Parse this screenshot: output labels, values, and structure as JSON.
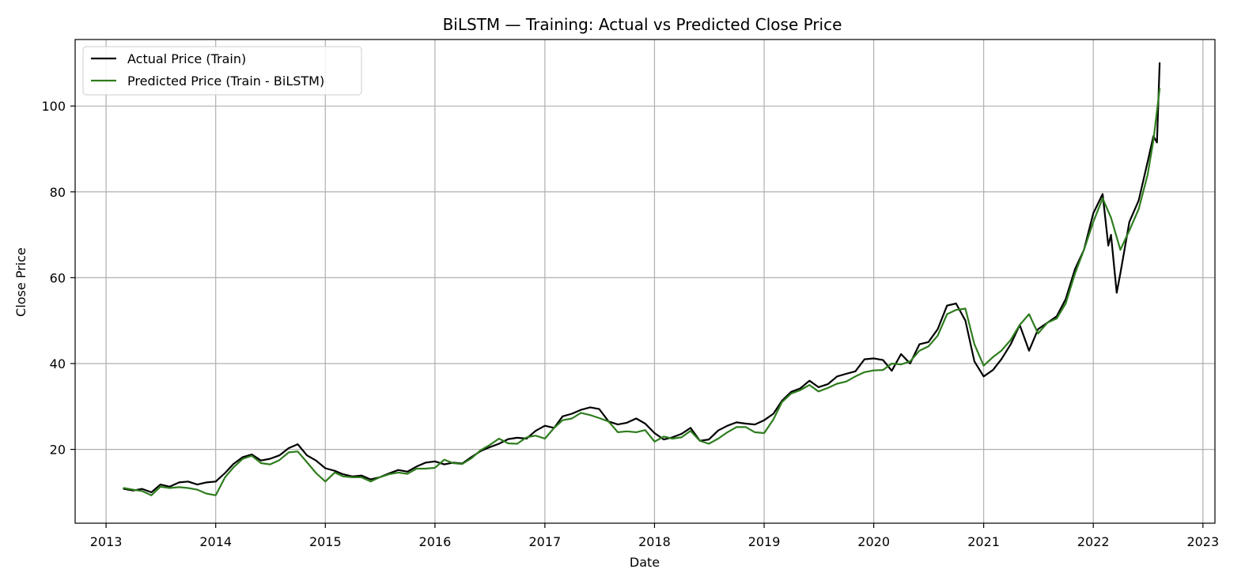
{
  "chart_data": {
    "type": "line",
    "title": "BiLSTM — Training: Actual vs Predicted Close Price",
    "xlabel": "Date",
    "ylabel": "Close Price",
    "x_type": "date",
    "xlim": [
      "2012-09-20",
      "2023-02-10"
    ],
    "ylim": [
      2.8,
      115.5
    ],
    "x_ticks": [
      "2013",
      "2014",
      "2015",
      "2016",
      "2017",
      "2018",
      "2019",
      "2020",
      "2021",
      "2022",
      "2023"
    ],
    "x_tick_dates": [
      "2013-01-01",
      "2014-01-01",
      "2015-01-01",
      "2016-01-01",
      "2017-01-01",
      "2018-01-01",
      "2019-01-01",
      "2020-01-01",
      "2021-01-01",
      "2022-01-01",
      "2023-01-01"
    ],
    "y_ticks": [
      20,
      40,
      60,
      80,
      100
    ],
    "grid": true,
    "legend_position": "upper-left",
    "series": [
      {
        "name": "Actual Price (Train)",
        "color": "#000000",
        "points": [
          [
            "2013-03-01",
            10.8
          ],
          [
            "2013-04-01",
            10.4
          ],
          [
            "2013-05-01",
            10.8
          ],
          [
            "2013-06-01",
            10.0
          ],
          [
            "2013-07-01",
            11.8
          ],
          [
            "2013-08-01",
            11.3
          ],
          [
            "2013-09-01",
            12.3
          ],
          [
            "2013-10-01",
            12.5
          ],
          [
            "2013-11-01",
            11.8
          ],
          [
            "2013-12-01",
            12.3
          ],
          [
            "2014-01-01",
            12.5
          ],
          [
            "2014-02-01",
            14.5
          ],
          [
            "2014-03-01",
            16.6
          ],
          [
            "2014-04-01",
            18.2
          ],
          [
            "2014-05-01",
            18.8
          ],
          [
            "2014-06-01",
            17.4
          ],
          [
            "2014-07-01",
            17.8
          ],
          [
            "2014-08-01",
            18.6
          ],
          [
            "2014-09-01",
            20.3
          ],
          [
            "2014-10-01",
            21.2
          ],
          [
            "2014-11-01",
            18.6
          ],
          [
            "2014-12-01",
            17.4
          ],
          [
            "2015-01-01",
            15.6
          ],
          [
            "2015-02-01",
            15.0
          ],
          [
            "2015-03-01",
            14.2
          ],
          [
            "2015-04-01",
            13.7
          ],
          [
            "2015-05-01",
            13.9
          ],
          [
            "2015-06-01",
            13.0
          ],
          [
            "2015-07-01",
            13.5
          ],
          [
            "2015-08-01",
            14.4
          ],
          [
            "2015-09-01",
            15.2
          ],
          [
            "2015-10-01",
            14.8
          ],
          [
            "2015-11-01",
            16.0
          ],
          [
            "2015-12-01",
            16.9
          ],
          [
            "2016-01-01",
            17.2
          ],
          [
            "2016-02-01",
            16.5
          ],
          [
            "2016-03-01",
            16.9
          ],
          [
            "2016-04-01",
            16.7
          ],
          [
            "2016-05-01",
            18.2
          ],
          [
            "2016-06-01",
            19.6
          ],
          [
            "2016-07-01",
            20.5
          ],
          [
            "2016-08-01",
            21.3
          ],
          [
            "2016-09-01",
            22.4
          ],
          [
            "2016-10-01",
            22.7
          ],
          [
            "2016-11-01",
            22.5
          ],
          [
            "2016-12-01",
            24.3
          ],
          [
            "2017-01-01",
            25.5
          ],
          [
            "2017-02-01",
            25.0
          ],
          [
            "2017-03-01",
            27.7
          ],
          [
            "2017-04-01",
            28.3
          ],
          [
            "2017-05-01",
            29.2
          ],
          [
            "2017-06-01",
            29.8
          ],
          [
            "2017-07-01",
            29.4
          ],
          [
            "2017-08-01",
            26.5
          ],
          [
            "2017-09-01",
            25.8
          ],
          [
            "2017-10-01",
            26.2
          ],
          [
            "2017-11-01",
            27.2
          ],
          [
            "2017-12-01",
            26.0
          ],
          [
            "2018-01-01",
            23.8
          ],
          [
            "2018-02-01",
            22.3
          ],
          [
            "2018-03-01",
            22.8
          ],
          [
            "2018-04-01",
            23.6
          ],
          [
            "2018-05-01",
            25.0
          ],
          [
            "2018-06-01",
            22.0
          ],
          [
            "2018-07-01",
            22.3
          ],
          [
            "2018-08-01",
            24.4
          ],
          [
            "2018-09-01",
            25.5
          ],
          [
            "2018-10-01",
            26.3
          ],
          [
            "2018-11-01",
            26.0
          ],
          [
            "2018-12-01",
            25.8
          ],
          [
            "2019-01-01",
            26.8
          ],
          [
            "2019-02-01",
            28.3
          ],
          [
            "2019-03-01",
            31.3
          ],
          [
            "2019-04-01",
            33.4
          ],
          [
            "2019-05-01",
            34.2
          ],
          [
            "2019-06-01",
            36.0
          ],
          [
            "2019-07-01",
            34.5
          ],
          [
            "2019-08-01",
            35.2
          ],
          [
            "2019-09-01",
            37.0
          ],
          [
            "2019-10-01",
            37.6
          ],
          [
            "2019-11-01",
            38.2
          ],
          [
            "2019-12-01",
            41.0
          ],
          [
            "2020-01-01",
            41.2
          ],
          [
            "2020-02-01",
            40.8
          ],
          [
            "2020-03-01",
            38.3
          ],
          [
            "2020-04-01",
            42.2
          ],
          [
            "2020-05-01",
            40.0
          ],
          [
            "2020-06-01",
            44.5
          ],
          [
            "2020-07-01",
            45.0
          ],
          [
            "2020-08-01",
            48.0
          ],
          [
            "2020-09-01",
            53.5
          ],
          [
            "2020-10-01",
            54.0
          ],
          [
            "2020-11-01",
            50.0
          ],
          [
            "2020-12-01",
            40.5
          ],
          [
            "2021-01-01",
            37.0
          ],
          [
            "2021-02-01",
            38.5
          ],
          [
            "2021-03-01",
            41.0
          ],
          [
            "2021-04-01",
            44.5
          ],
          [
            "2021-05-01",
            49.0
          ],
          [
            "2021-06-01",
            43.0
          ],
          [
            "2021-07-01",
            48.0
          ],
          [
            "2021-08-01",
            49.5
          ],
          [
            "2021-09-01",
            51.0
          ],
          [
            "2021-10-01",
            55.0
          ],
          [
            "2021-11-01",
            62.0
          ],
          [
            "2021-12-01",
            66.5
          ],
          [
            "2022-01-01",
            75.0
          ],
          [
            "2022-02-01",
            79.5
          ],
          [
            "2022-02-20",
            67.5
          ],
          [
            "2022-03-01",
            70.0
          ],
          [
            "2022-03-20",
            56.5
          ],
          [
            "2022-04-01",
            61.0
          ],
          [
            "2022-05-01",
            73.0
          ],
          [
            "2022-06-01",
            78.0
          ],
          [
            "2022-07-01",
            87.0
          ],
          [
            "2022-07-20",
            93.0
          ],
          [
            "2022-08-01",
            91.5
          ],
          [
            "2022-08-10",
            110.0
          ]
        ]
      },
      {
        "name": "Predicted Price (Train - BiLSTM)",
        "color": "#2e7d1e",
        "points": [
          [
            "2013-03-01",
            11.0
          ],
          [
            "2013-04-01",
            10.6
          ],
          [
            "2013-05-01",
            10.3
          ],
          [
            "2013-06-01",
            9.3
          ],
          [
            "2013-07-01",
            11.3
          ],
          [
            "2013-08-01",
            11.0
          ],
          [
            "2013-09-01",
            11.2
          ],
          [
            "2013-10-01",
            11.0
          ],
          [
            "2013-11-01",
            10.6
          ],
          [
            "2013-12-01",
            9.7
          ],
          [
            "2014-01-01",
            9.3
          ],
          [
            "2014-02-01",
            13.5
          ],
          [
            "2014-03-01",
            15.8
          ],
          [
            "2014-04-01",
            17.8
          ],
          [
            "2014-05-01",
            18.5
          ],
          [
            "2014-06-01",
            16.8
          ],
          [
            "2014-07-01",
            16.5
          ],
          [
            "2014-08-01",
            17.5
          ],
          [
            "2014-09-01",
            19.3
          ],
          [
            "2014-10-01",
            19.5
          ],
          [
            "2014-11-01",
            17.0
          ],
          [
            "2014-12-01",
            14.5
          ],
          [
            "2015-01-01",
            12.5
          ],
          [
            "2015-02-01",
            14.6
          ],
          [
            "2015-03-01",
            13.7
          ],
          [
            "2015-04-01",
            13.5
          ],
          [
            "2015-05-01",
            13.5
          ],
          [
            "2015-06-01",
            12.5
          ],
          [
            "2015-07-01",
            13.5
          ],
          [
            "2015-08-01",
            14.2
          ],
          [
            "2015-09-01",
            14.6
          ],
          [
            "2015-10-01",
            14.3
          ],
          [
            "2015-11-01",
            15.5
          ],
          [
            "2015-12-01",
            15.5
          ],
          [
            "2016-01-01",
            15.7
          ],
          [
            "2016-02-01",
            17.6
          ],
          [
            "2016-03-01",
            16.8
          ],
          [
            "2016-04-01",
            16.6
          ],
          [
            "2016-05-01",
            17.9
          ],
          [
            "2016-06-01",
            19.8
          ],
          [
            "2016-07-01",
            21.0
          ],
          [
            "2016-08-01",
            22.5
          ],
          [
            "2016-09-01",
            21.4
          ],
          [
            "2016-10-01",
            21.3
          ],
          [
            "2016-11-01",
            22.8
          ],
          [
            "2016-12-01",
            23.2
          ],
          [
            "2017-01-01",
            22.5
          ],
          [
            "2017-02-01",
            25.0
          ],
          [
            "2017-03-01",
            26.8
          ],
          [
            "2017-04-01",
            27.2
          ],
          [
            "2017-05-01",
            28.5
          ],
          [
            "2017-06-01",
            28.0
          ],
          [
            "2017-07-01",
            27.3
          ],
          [
            "2017-08-01",
            26.5
          ],
          [
            "2017-09-01",
            24.0
          ],
          [
            "2017-10-01",
            24.2
          ],
          [
            "2017-11-01",
            24.0
          ],
          [
            "2017-12-01",
            24.5
          ],
          [
            "2018-01-01",
            21.8
          ],
          [
            "2018-02-01",
            23.0
          ],
          [
            "2018-03-01",
            22.5
          ],
          [
            "2018-04-01",
            22.8
          ],
          [
            "2018-05-01",
            24.3
          ],
          [
            "2018-06-01",
            22.0
          ],
          [
            "2018-07-01",
            21.3
          ],
          [
            "2018-08-01",
            22.5
          ],
          [
            "2018-09-01",
            24.0
          ],
          [
            "2018-10-01",
            25.2
          ],
          [
            "2018-11-01",
            25.2
          ],
          [
            "2018-12-01",
            24.0
          ],
          [
            "2019-01-01",
            23.8
          ],
          [
            "2019-02-01",
            27.0
          ],
          [
            "2019-03-01",
            31.0
          ],
          [
            "2019-04-01",
            33.0
          ],
          [
            "2019-05-01",
            33.8
          ],
          [
            "2019-06-01",
            35.0
          ],
          [
            "2019-07-01",
            33.5
          ],
          [
            "2019-08-01",
            34.3
          ],
          [
            "2019-09-01",
            35.3
          ],
          [
            "2019-10-01",
            35.8
          ],
          [
            "2019-11-01",
            37.0
          ],
          [
            "2019-12-01",
            38.0
          ],
          [
            "2020-01-01",
            38.4
          ],
          [
            "2020-02-01",
            38.5
          ],
          [
            "2020-03-01",
            40.0
          ],
          [
            "2020-04-01",
            39.8
          ],
          [
            "2020-05-01",
            40.5
          ],
          [
            "2020-06-01",
            43.0
          ],
          [
            "2020-07-01",
            44.0
          ],
          [
            "2020-08-01",
            46.5
          ],
          [
            "2020-09-01",
            51.5
          ],
          [
            "2020-10-01",
            52.5
          ],
          [
            "2020-11-01",
            52.8
          ],
          [
            "2020-12-01",
            44.5
          ],
          [
            "2021-01-01",
            39.5
          ],
          [
            "2021-02-01",
            41.5
          ],
          [
            "2021-03-01",
            43.0
          ],
          [
            "2021-04-01",
            45.5
          ],
          [
            "2021-05-01",
            49.0
          ],
          [
            "2021-06-01",
            51.5
          ],
          [
            "2021-07-01",
            47.0
          ],
          [
            "2021-08-01",
            49.5
          ],
          [
            "2021-09-01",
            50.5
          ],
          [
            "2021-10-01",
            54.0
          ],
          [
            "2021-11-01",
            61.0
          ],
          [
            "2021-12-01",
            66.5
          ],
          [
            "2022-01-01",
            73.0
          ],
          [
            "2022-02-01",
            78.5
          ],
          [
            "2022-03-01",
            74.0
          ],
          [
            "2022-04-01",
            66.5
          ],
          [
            "2022-05-01",
            71.0
          ],
          [
            "2022-06-01",
            76.0
          ],
          [
            "2022-07-01",
            84.0
          ],
          [
            "2022-07-20",
            92.0
          ],
          [
            "2022-08-10",
            104.0
          ]
        ]
      }
    ]
  }
}
